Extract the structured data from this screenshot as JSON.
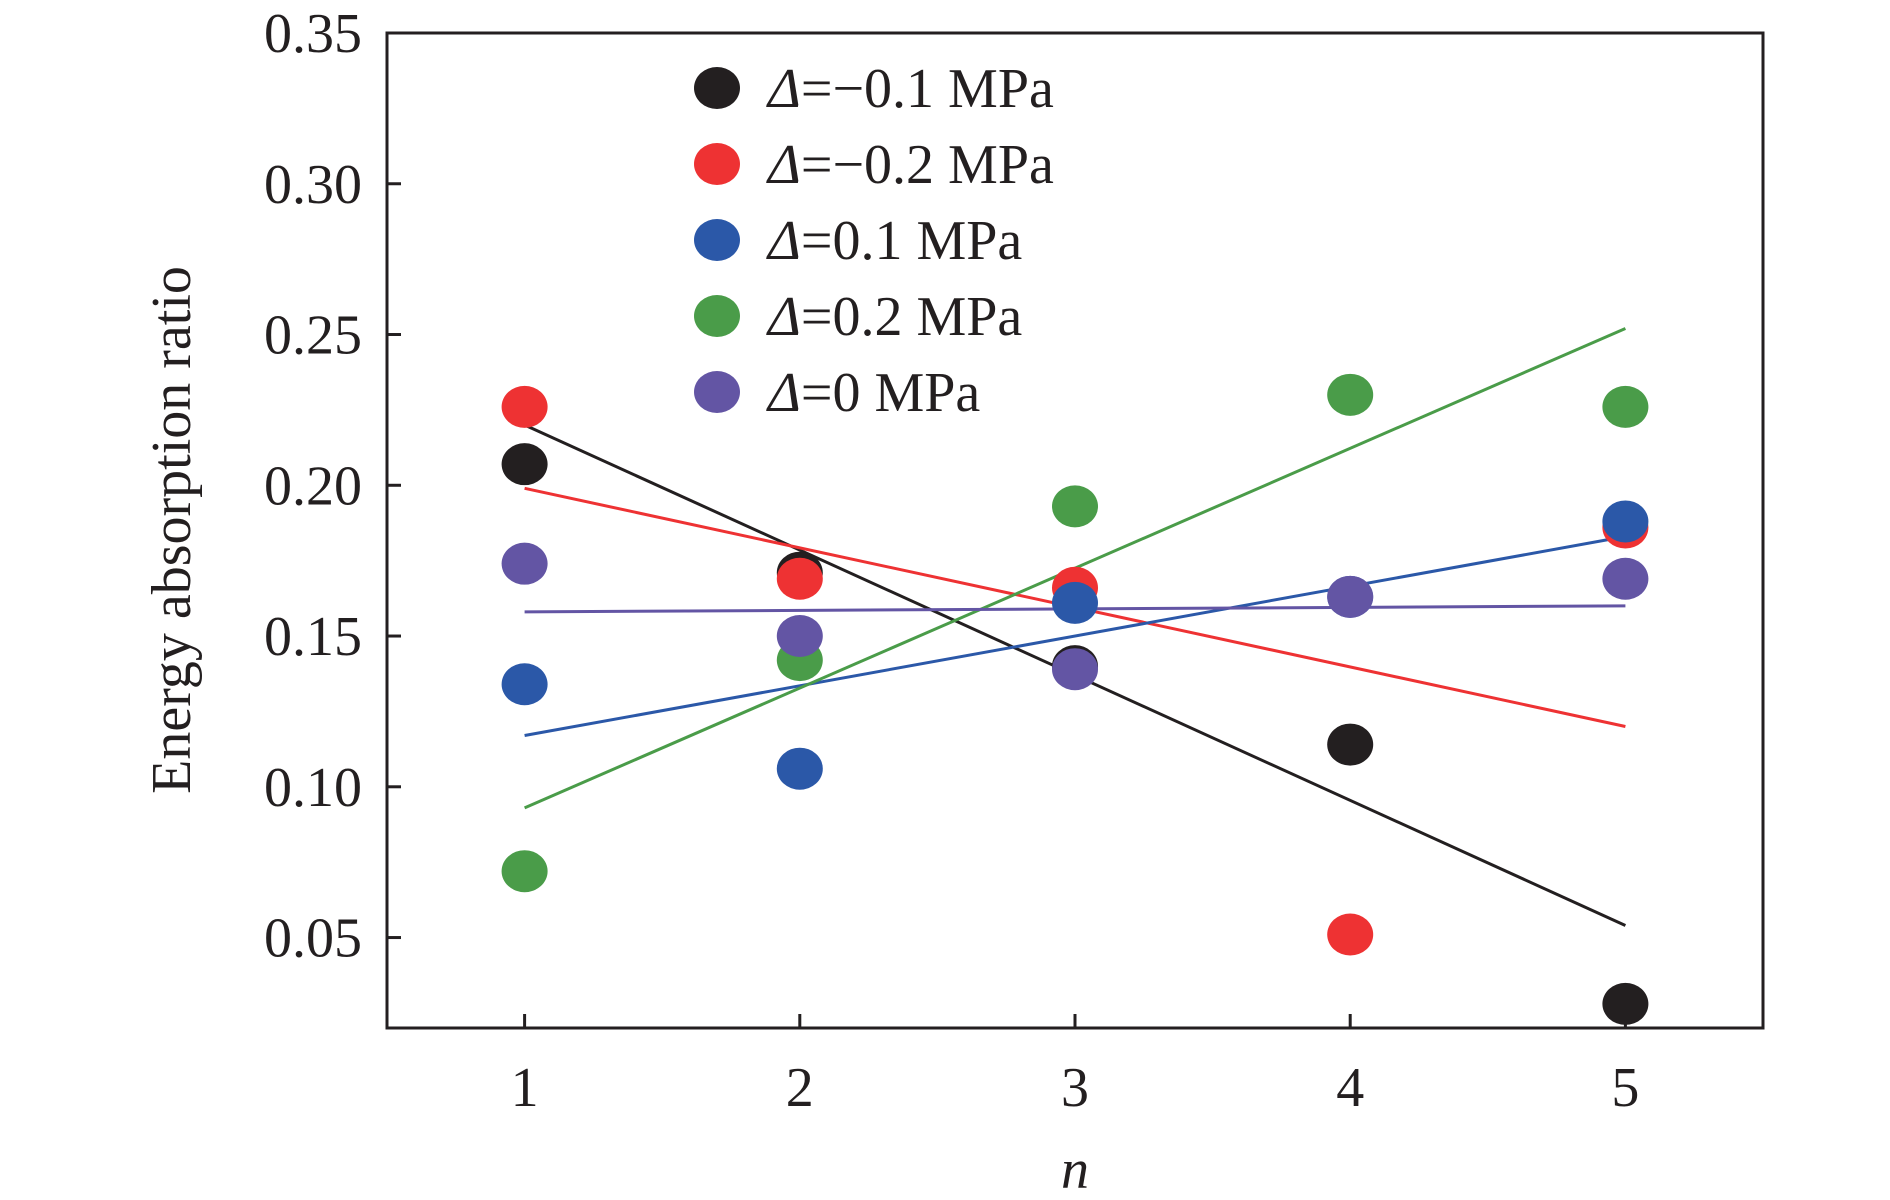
{
  "chart_data": {
    "type": "scatter",
    "title": "",
    "xlabel": "n",
    "ylabel": "Energy absorption ratio",
    "xlim": [
      0.5,
      5.5
    ],
    "ylim": [
      0.02,
      0.35
    ],
    "xticks": [
      "1",
      "2",
      "3",
      "4",
      "5"
    ],
    "yticks": [
      "0.05",
      "0.10",
      "0.15",
      "0.20",
      "0.25",
      "0.30",
      "0.35"
    ],
    "grid": false,
    "legend_position": "top-left",
    "legend_prefix": "Δ",
    "x": [
      1,
      2,
      3,
      4,
      5
    ],
    "series": [
      {
        "name": "=−0.1 MPa",
        "color": "#231f20",
        "values": [
          0.207,
          0.171,
          0.14,
          0.114,
          0.028
        ],
        "fit": [
          0.22,
          0.054
        ]
      },
      {
        "name": "=−0.2 MPa",
        "color": "#ee3233",
        "values": [
          0.226,
          0.169,
          0.166,
          0.051,
          0.186
        ],
        "fit": [
          0.199,
          0.12
        ]
      },
      {
        "name": "=0.1 MPa",
        "color": "#2b58a8",
        "values": [
          0.134,
          0.106,
          0.161,
          0.163,
          0.188
        ],
        "fit": [
          0.117,
          0.183
        ]
      },
      {
        "name": "=0.2 MPa",
        "color": "#4a9c49",
        "values": [
          0.072,
          0.142,
          0.193,
          0.23,
          0.226
        ],
        "fit": [
          0.093,
          0.252
        ]
      },
      {
        "name": "=0 MPa",
        "color": "#6355a4",
        "values": [
          0.174,
          0.15,
          0.139,
          0.163,
          0.169
        ],
        "fit": [
          0.158,
          0.16
        ]
      }
    ]
  }
}
